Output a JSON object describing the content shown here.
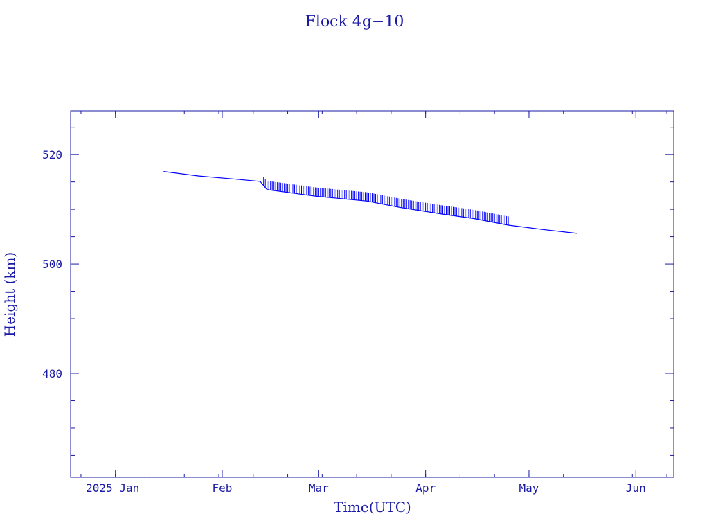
{
  "chart_data": {
    "type": "line",
    "title": "Flock 4g−10",
    "xlabel": "Time(UTC)",
    "ylabel": "Height (km)",
    "x_unit": "date",
    "xlim": [
      "2024-12-19",
      "2025-06-12"
    ],
    "ylim": [
      461,
      528
    ],
    "x_ticks": [
      {
        "date": "2025-01-01",
        "label": "2025 Jan"
      },
      {
        "date": "2025-02-01",
        "label": "Feb"
      },
      {
        "date": "2025-03-01",
        "label": "Mar"
      },
      {
        "date": "2025-04-01",
        "label": "Apr"
      },
      {
        "date": "2025-05-01",
        "label": "May"
      },
      {
        "date": "2025-06-01",
        "label": "Jun"
      }
    ],
    "y_ticks": [
      480,
      500,
      520
    ],
    "grid": false,
    "colors": {
      "axis": "#1a1aa6",
      "series": "#0000ff"
    },
    "series": [
      {
        "points": [
          [
            "2025-01-15",
            516.9
          ],
          [
            "2025-01-25",
            516.1
          ],
          [
            "2025-02-05",
            515.5
          ],
          [
            "2025-02-12",
            515.1
          ],
          [
            "2025-02-14",
            513.6
          ],
          [
            "2025-02-28",
            512.4
          ],
          [
            "2025-03-15",
            511.5
          ],
          [
            "2025-03-25",
            510.3
          ],
          [
            "2025-04-05",
            509.2
          ],
          [
            "2025-04-15",
            508.3
          ],
          [
            "2025-04-25",
            507.1
          ],
          [
            "2025-05-05",
            506.3
          ],
          [
            "2025-05-15",
            505.6
          ]
        ],
        "spikes": [
          {
            "from": "2025-02-13",
            "to": "2025-04-25",
            "every_days": 0.5,
            "height_km": 1.6
          }
        ]
      }
    ]
  }
}
